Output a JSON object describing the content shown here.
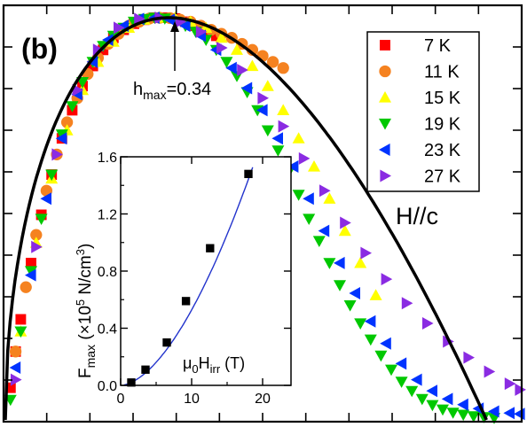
{
  "chart_data": [
    {
      "type": "scatter",
      "panel_label": "(b)",
      "title": "",
      "xlabel": "",
      "ylabel": "",
      "xlim": [
        0,
        1
      ],
      "ylim": [
        0,
        1
      ],
      "field_label": "H//c",
      "annotation": {
        "prefix": "h",
        "sub": "max",
        "suffix": "=0.34",
        "x": 0.34,
        "y": 1.0
      },
      "series": [
        {
          "name": "7 K",
          "color": "#ff0000",
          "marker": "square",
          "x": [
            0.01,
            0.02,
            0.03,
            0.05,
            0.07,
            0.09,
            0.11,
            0.13,
            0.15,
            0.17,
            0.19,
            0.21,
            0.23,
            0.25,
            0.27,
            0.29,
            0.31,
            0.33,
            0.35,
            0.37,
            0.39,
            0.41
          ],
          "y": [
            0.08,
            0.17,
            0.25,
            0.39,
            0.51,
            0.61,
            0.7,
            0.77,
            0.83,
            0.88,
            0.92,
            0.95,
            0.97,
            0.985,
            0.995,
            1.0,
            1.0,
            0.998,
            0.99,
            0.98,
            0.97,
            0.955
          ]
        },
        {
          "name": "11 K",
          "color": "#f58220",
          "marker": "circle",
          "x": [
            0.02,
            0.04,
            0.06,
            0.08,
            0.1,
            0.12,
            0.14,
            0.16,
            0.18,
            0.2,
            0.22,
            0.24,
            0.26,
            0.28,
            0.3,
            0.32,
            0.34,
            0.36,
            0.38,
            0.4,
            0.42,
            0.44,
            0.46,
            0.48,
            0.5,
            0.52,
            0.54
          ],
          "y": [
            0.17,
            0.33,
            0.46,
            0.57,
            0.66,
            0.74,
            0.8,
            0.86,
            0.9,
            0.935,
            0.96,
            0.98,
            0.99,
            0.998,
            1.0,
            0.999,
            0.995,
            0.99,
            0.98,
            0.97,
            0.96,
            0.95,
            0.935,
            0.92,
            0.905,
            0.89,
            0.875
          ]
        },
        {
          "name": "15 K",
          "color": "#ffff00",
          "marker": "triangle-up",
          "x": [
            0.03,
            0.06,
            0.09,
            0.12,
            0.15,
            0.18,
            0.21,
            0.24,
            0.27,
            0.3,
            0.33,
            0.36,
            0.39,
            0.42,
            0.45,
            0.48,
            0.51,
            0.54,
            0.57,
            0.6,
            0.63,
            0.66,
            0.69,
            0.72
          ],
          "y": [
            0.22,
            0.44,
            0.6,
            0.72,
            0.82,
            0.89,
            0.94,
            0.975,
            0.995,
            1.0,
            1.0,
            0.99,
            0.975,
            0.95,
            0.92,
            0.88,
            0.83,
            0.77,
            0.7,
            0.63,
            0.55,
            0.47,
            0.39,
            0.31
          ]
        },
        {
          "name": "19 K",
          "color": "#00c800",
          "marker": "triangle-down",
          "x": [
            0.01,
            0.03,
            0.05,
            0.07,
            0.09,
            0.11,
            0.13,
            0.15,
            0.17,
            0.19,
            0.21,
            0.23,
            0.25,
            0.27,
            0.29,
            0.31,
            0.33,
            0.35,
            0.37,
            0.39,
            0.41,
            0.43,
            0.45,
            0.47,
            0.49,
            0.51,
            0.53,
            0.55,
            0.57,
            0.59,
            0.61,
            0.63,
            0.65,
            0.67,
            0.69,
            0.71,
            0.73,
            0.75,
            0.77,
            0.79,
            0.81,
            0.83,
            0.85,
            0.87,
            0.89,
            0.91,
            0.93,
            0.95
          ],
          "y": [
            0.05,
            0.22,
            0.37,
            0.5,
            0.61,
            0.71,
            0.78,
            0.84,
            0.89,
            0.93,
            0.955,
            0.975,
            0.99,
            0.997,
            1.0,
            0.998,
            0.99,
            0.98,
            0.965,
            0.945,
            0.92,
            0.89,
            0.855,
            0.815,
            0.77,
            0.72,
            0.67,
            0.615,
            0.56,
            0.5,
            0.445,
            0.39,
            0.335,
            0.285,
            0.24,
            0.2,
            0.16,
            0.125,
            0.095,
            0.072,
            0.052,
            0.037,
            0.026,
            0.018,
            0.013,
            0.009,
            0.007,
            0.005
          ]
        },
        {
          "name": "23 K",
          "color": "#0033ff",
          "marker": "triangle-left",
          "x": [
            0.02,
            0.05,
            0.08,
            0.11,
            0.14,
            0.17,
            0.2,
            0.23,
            0.26,
            0.29,
            0.32,
            0.35,
            0.38,
            0.41,
            0.44,
            0.47,
            0.5,
            0.53,
            0.56,
            0.59,
            0.62,
            0.65,
            0.68,
            0.71,
            0.74,
            0.77,
            0.8,
            0.83,
            0.86,
            0.89,
            0.92,
            0.95,
            0.98,
            1.0
          ],
          "y": [
            0.13,
            0.36,
            0.55,
            0.7,
            0.81,
            0.89,
            0.945,
            0.98,
            0.997,
            1.0,
            0.995,
            0.98,
            0.955,
            0.92,
            0.875,
            0.825,
            0.77,
            0.7,
            0.63,
            0.55,
            0.47,
            0.39,
            0.315,
            0.245,
            0.19,
            0.14,
            0.1,
            0.072,
            0.052,
            0.038,
            0.028,
            0.021,
            0.017,
            0.015
          ]
        },
        {
          "name": "27 K",
          "color": "#8a2be2",
          "marker": "triangle-right",
          "x": [
            0.02,
            0.06,
            0.1,
            0.14,
            0.18,
            0.22,
            0.26,
            0.3,
            0.34,
            0.38,
            0.42,
            0.46,
            0.5,
            0.54,
            0.58,
            0.62,
            0.66,
            0.7,
            0.74,
            0.78,
            0.82,
            0.86,
            0.9,
            0.94,
            0.98,
            1.0
          ],
          "y": [
            0.1,
            0.43,
            0.66,
            0.82,
            0.92,
            0.975,
            0.997,
            1.0,
            0.99,
            0.965,
            0.925,
            0.87,
            0.8,
            0.73,
            0.65,
            0.57,
            0.49,
            0.415,
            0.35,
            0.29,
            0.24,
            0.195,
            0.155,
            0.12,
            0.09,
            0.075
          ]
        }
      ],
      "fit_curve": {
        "color": "#000000",
        "description": "black line"
      },
      "legend": "top-right",
      "ticks": "unlabeled"
    },
    {
      "type": "scatter",
      "role": "inset",
      "xlabel_parts": {
        "mu": "μ",
        "zero": "0",
        "H": "H",
        "sub": "irr",
        "unit": " (T)"
      },
      "ylabel_parts": {
        "F": "F",
        "sub": "max",
        "pre": " (×10",
        "exp": "5",
        "mid": " N/cm",
        "cube": "3",
        "end": ")"
      },
      "xlim": [
        0,
        24
      ],
      "ylim": [
        0,
        1.6
      ],
      "x_ticks": [
        0,
        10,
        20
      ],
      "y_ticks": [
        "0.0",
        "0.4",
        "0.8",
        "1.2",
        "1.6"
      ],
      "points": {
        "color": "#000000",
        "marker": "square",
        "x": [
          1.5,
          3.5,
          6.5,
          9.2,
          12.6,
          18.0
        ],
        "y": [
          0.02,
          0.11,
          0.3,
          0.59,
          0.96,
          1.48
        ]
      },
      "fit_color": "#2233cc"
    }
  ]
}
